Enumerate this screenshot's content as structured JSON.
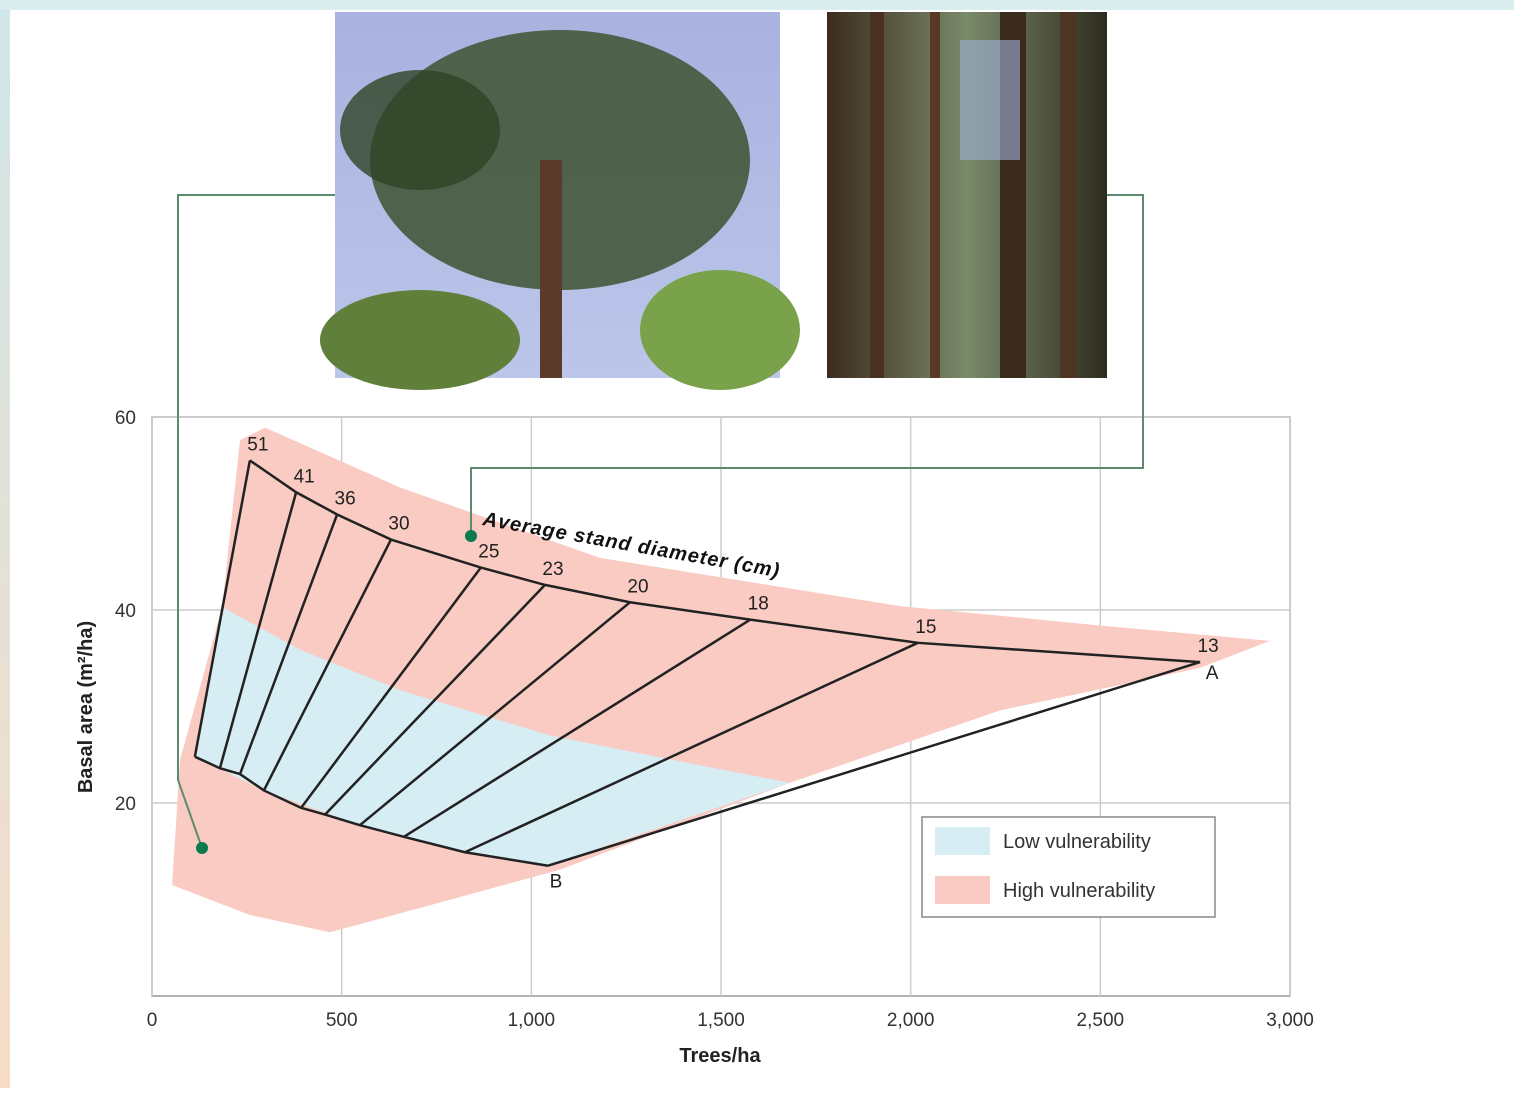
{
  "chart_data": {
    "type": "density",
    "x_label": "Trees/ha",
    "y_label": "Basal area (m²/ha)",
    "curve_label": "Average stand diameter (cm)",
    "xlim": [
      0,
      3000
    ],
    "ylim": [
      0,
      60
    ],
    "xticks": [
      0,
      500,
      {
        "value": 1000,
        "label": "1,000"
      },
      {
        "value": 1500,
        "label": "1,500"
      },
      {
        "value": 2000,
        "label": "2,000"
      },
      {
        "value": 2500,
        "label": "2,500"
      },
      {
        "value": 3000,
        "label": "3,000"
      }
    ],
    "yticks": [
      20,
      40,
      60
    ],
    "grid": true,
    "diameters": [
      51,
      41,
      36,
      30,
      25,
      23,
      20,
      18,
      15,
      13
    ],
    "top": {
      "x": [
        258,
        380,
        488,
        630,
        867,
        1036,
        1260,
        1577,
        2019,
        2763
      ],
      "y": [
        55.5,
        52.2,
        49.9,
        47.3,
        44.4,
        42.6,
        40.8,
        39.0,
        36.6,
        34.6
      ]
    },
    "bottom": {
      "x": [
        113,
        179,
        232,
        295,
        393,
        456,
        548,
        664,
        825,
        1044
      ],
      "y": [
        24.8,
        23.6,
        23.0,
        21.3,
        19.5,
        18.8,
        17.7,
        16.5,
        14.9,
        13.5
      ]
    },
    "point_labels": [
      "A",
      "B"
    ],
    "regions": [
      {
        "name": "High vulnerability",
        "color": "#f9cbc2",
        "x": [
          298,
          654,
          1181,
          1972,
          2499,
          2947,
          2763,
          2236,
          1682,
          1076,
          733,
          469,
          258,
          53,
          74,
          185,
          232
        ],
        "y": [
          58.9,
          52.7,
          45.4,
          40.4,
          38.4,
          36.8,
          34.0,
          29.6,
          22.1,
          13.1,
          9.4,
          6.6,
          8.4,
          11.5,
          24.5,
          40.3,
          57.6
        ]
      },
      {
        "name": "Low vulnerability",
        "color": "#d6edf3",
        "x": [
          185,
          390,
          654,
          1049,
          1445,
          1682,
          1044,
          825,
          548,
          295,
          113
        ],
        "y": [
          40.3,
          35.9,
          31.7,
          27.0,
          23.9,
          22.1,
          13.5,
          14.9,
          17.7,
          21.3,
          24.8
        ]
      }
    ]
  }
}
